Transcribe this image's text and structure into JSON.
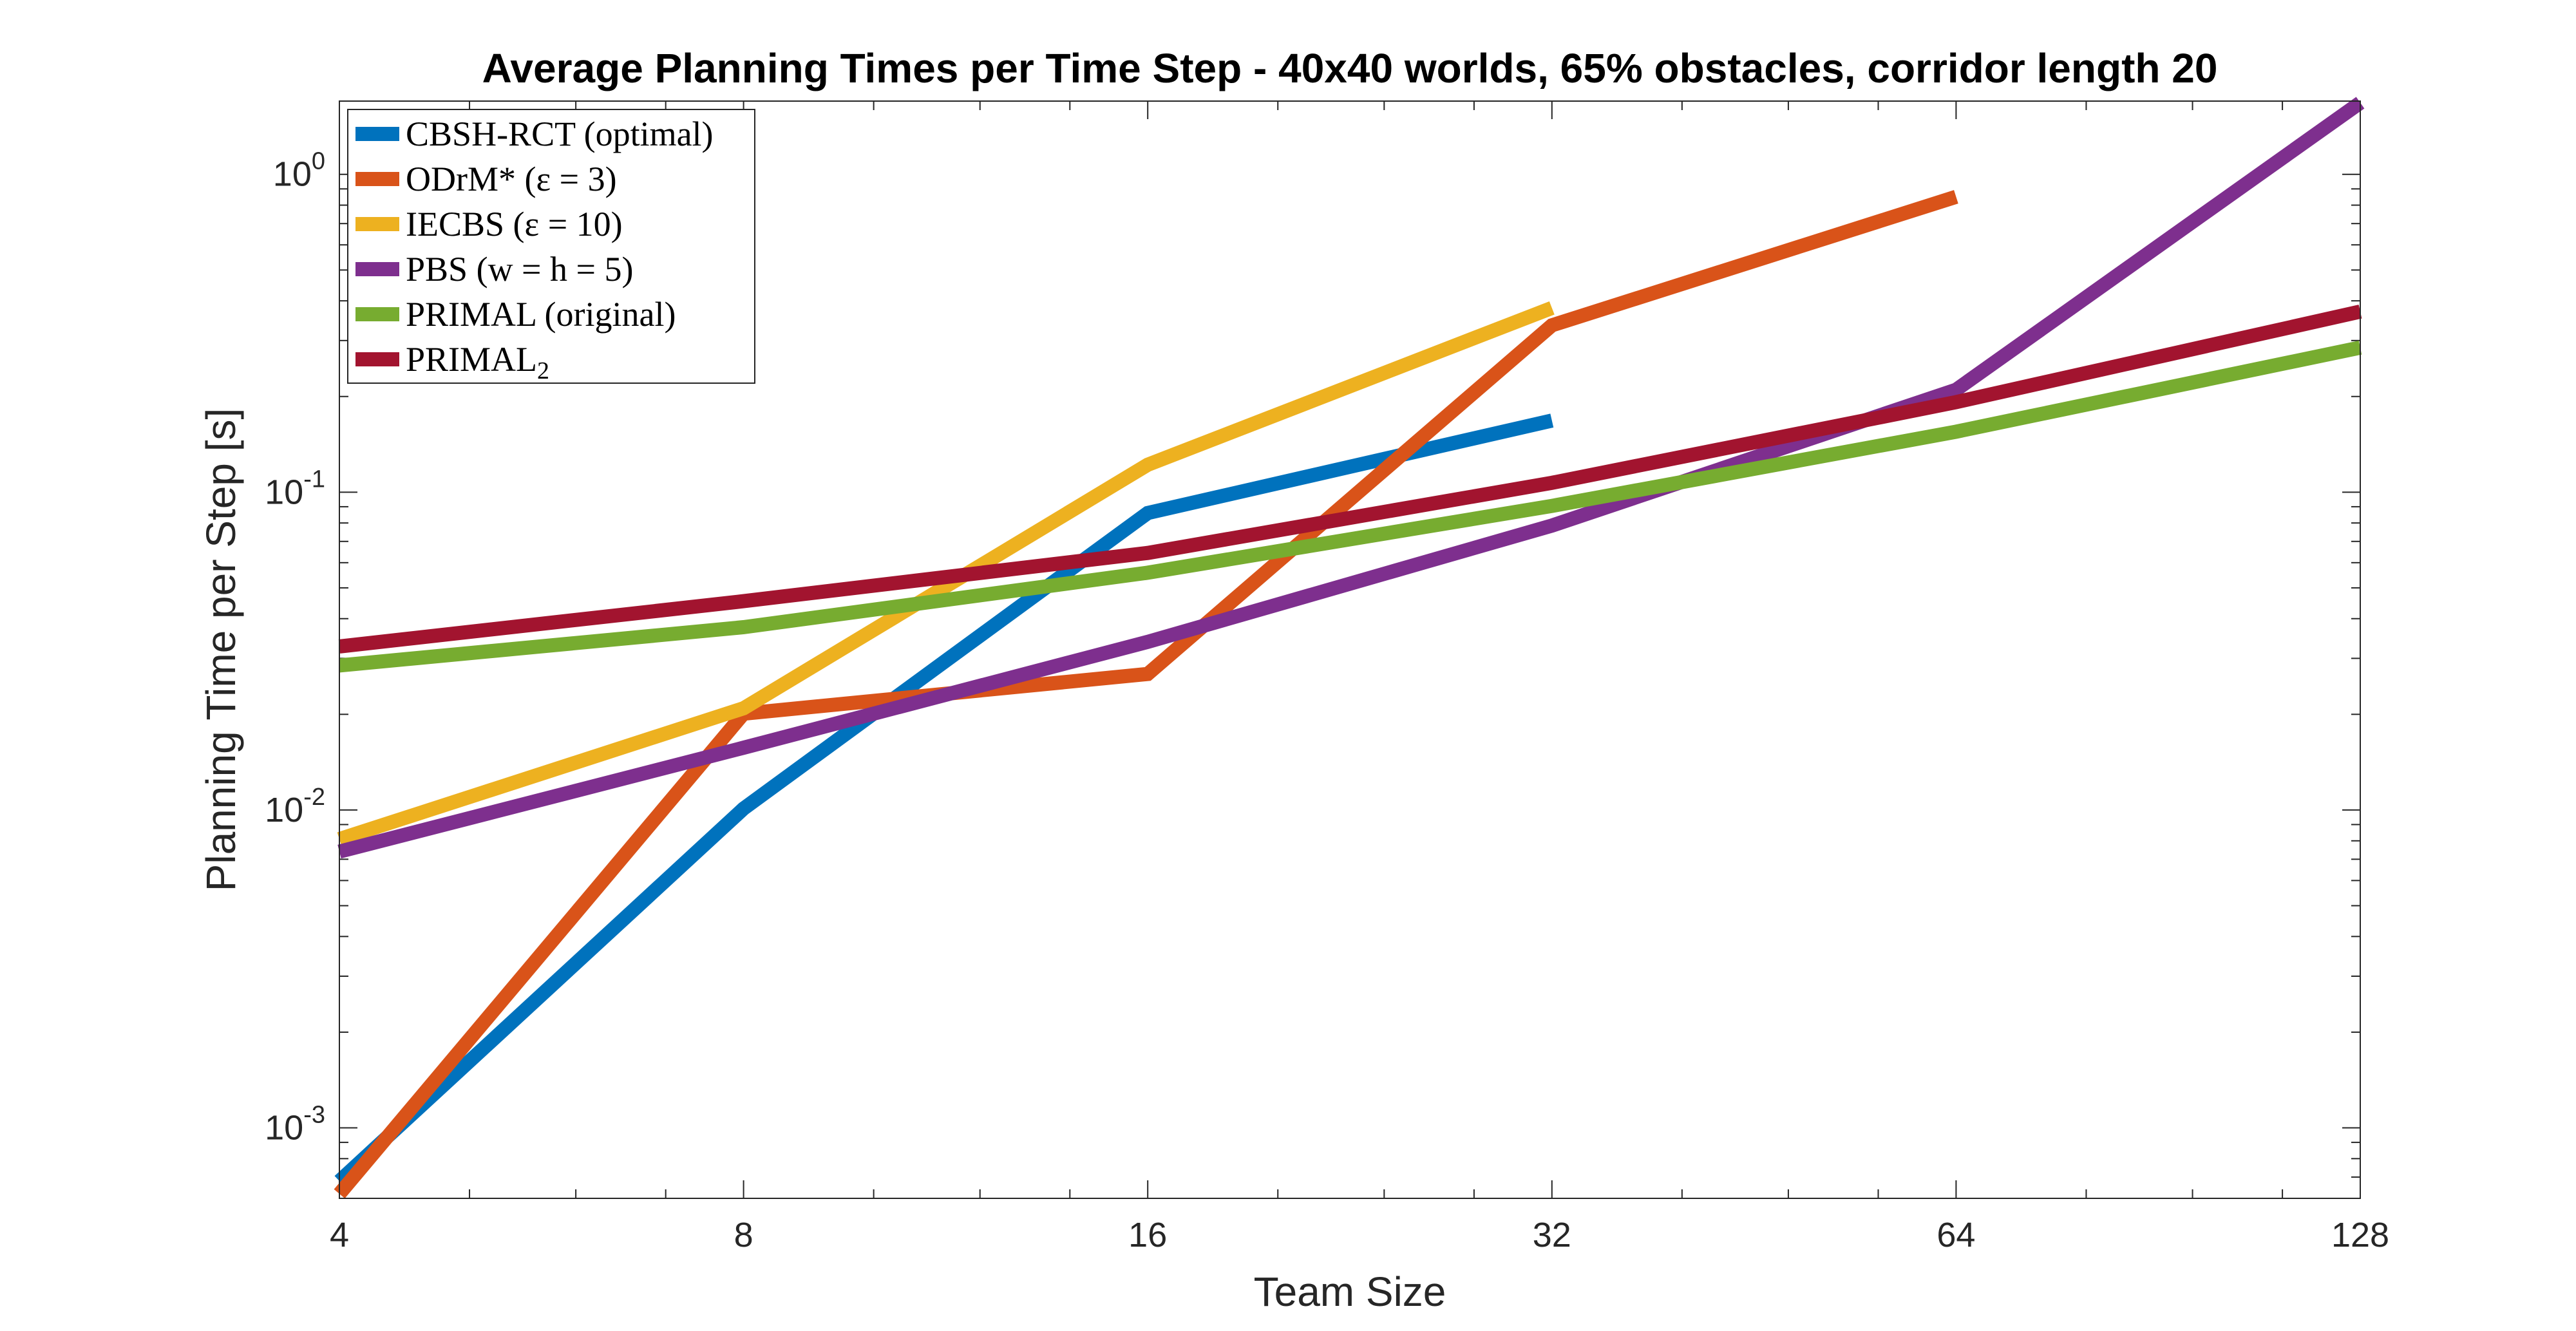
{
  "chart_data": {
    "type": "line",
    "title": "Average Planning Times per Time Step - 40x40 worlds, 65% obstacles, corridor length 20",
    "xlabel": "Team Size",
    "ylabel": "Planning Time per Step [s]",
    "xscale": "log2",
    "yscale": "log",
    "xlim": [
      4,
      128
    ],
    "ylim": [
      0.0006,
      1.7
    ],
    "xticks": [
      4,
      8,
      16,
      32,
      64,
      128
    ],
    "xtick_labels": [
      "4",
      "8",
      "16",
      "32",
      "64",
      "128"
    ],
    "yticks": [
      0.001,
      0.01,
      0.1,
      1
    ],
    "ytick_base": "10",
    "ytick_exponents": [
      "-3",
      "-2",
      "-1",
      "0"
    ],
    "grid": false,
    "legend_location": "top-left",
    "series": [
      {
        "name": "CBSH-RCT (optimal)",
        "legend_label": "CBSH-RCT (optimal)",
        "color": "#0072BD",
        "x": [
          4,
          8,
          16,
          32
        ],
        "values": [
          0.00068,
          0.0101,
          0.086,
          0.168
        ]
      },
      {
        "name": "ODrM* (ε = 3)",
        "legend_label": "ODrM* (ε = 3)",
        "color": "#D95319",
        "x": [
          4,
          8,
          16,
          32,
          64
        ],
        "values": [
          0.00062,
          0.0201,
          0.0268,
          0.335,
          0.85
        ]
      },
      {
        "name": "IECBS (ε = 10)",
        "legend_label": "IECBS (ε = 10)",
        "color": "#EDB120",
        "x": [
          4,
          8,
          16,
          32
        ],
        "values": [
          0.0081,
          0.0209,
          0.122,
          0.38
        ]
      },
      {
        "name": "PBS (w = h = 5)",
        "legend_label": "PBS (w = h = 5)",
        "color": "#7E2F8E",
        "x": [
          4,
          8,
          16,
          32,
          64,
          128
        ],
        "values": [
          0.0074,
          0.0157,
          0.0338,
          0.0785,
          0.21,
          1.68
        ]
      },
      {
        "name": "PRIMAL (original)",
        "legend_label": "PRIMAL (original)",
        "color": "#77AC30",
        "x": [
          4,
          8,
          16,
          32,
          64,
          128
        ],
        "values": [
          0.0285,
          0.0376,
          0.0558,
          0.0905,
          0.155,
          0.285
        ]
      },
      {
        "name": "PRIMAL2",
        "legend_label": "PRIMAL",
        "legend_subscript": "2",
        "color": "#A2142F",
        "x": [
          4,
          8,
          16,
          32,
          64,
          128
        ],
        "values": [
          0.0327,
          0.0454,
          0.0644,
          0.107,
          0.192,
          0.37
        ]
      }
    ]
  }
}
